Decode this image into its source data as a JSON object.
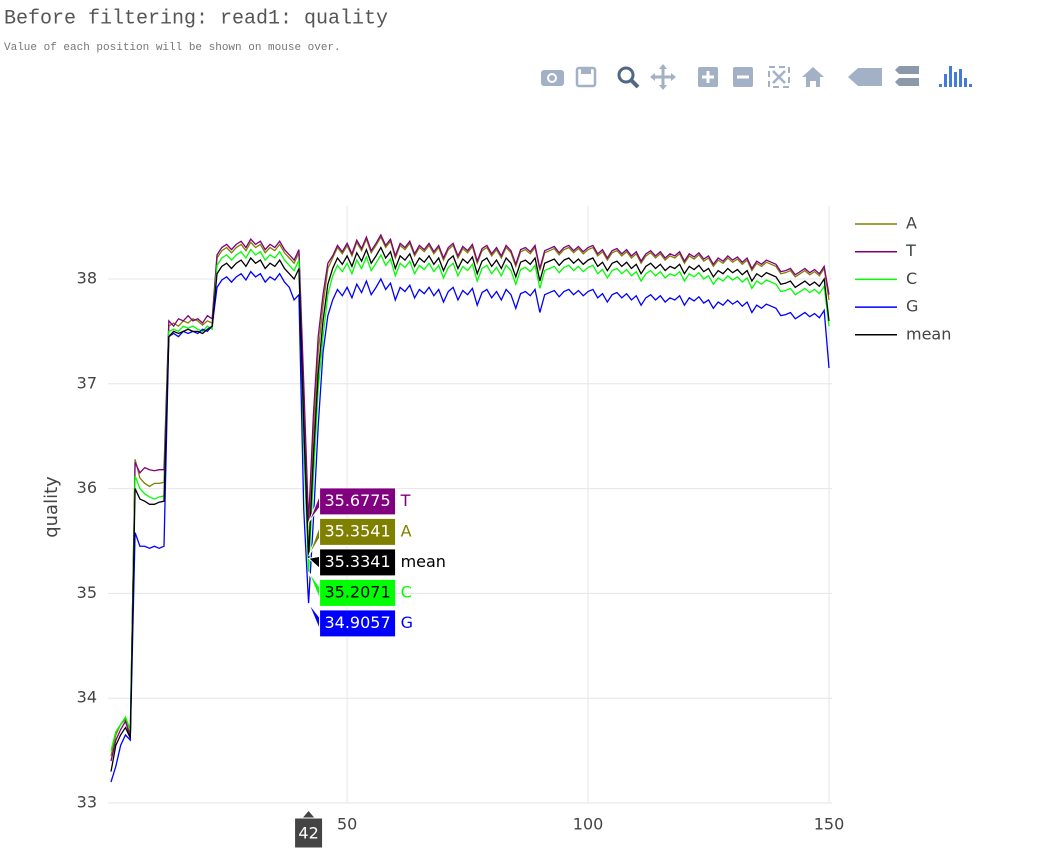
{
  "chart_data": {
    "type": "line",
    "title": "Before filtering: read1: quality",
    "subtitle": "Value of each position will be shown on mouse over.",
    "y_label": "quality",
    "xlim": [
      1,
      150
    ],
    "ylim": [
      33,
      38.7
    ],
    "xticks": [
      50,
      100,
      150
    ],
    "yticks": [
      33,
      34,
      35,
      36,
      37,
      38
    ],
    "grid": true,
    "legend": "top-right",
    "hover": {
      "x": 42
    },
    "x": [
      1,
      2,
      3,
      4,
      5,
      6,
      7,
      8,
      9,
      10,
      11,
      12,
      13,
      14,
      15,
      16,
      17,
      18,
      19,
      20,
      21,
      22,
      23,
      24,
      25,
      26,
      27,
      28,
      29,
      30,
      31,
      32,
      33,
      34,
      35,
      36,
      37,
      38,
      39,
      40,
      41,
      42,
      43,
      44,
      45,
      46,
      47,
      48,
      49,
      50,
      51,
      52,
      53,
      54,
      55,
      56,
      57,
      58,
      59,
      60,
      61,
      62,
      63,
      64,
      65,
      66,
      67,
      68,
      69,
      70,
      71,
      72,
      73,
      74,
      75,
      76,
      77,
      78,
      79,
      80,
      81,
      82,
      83,
      84,
      85,
      86,
      87,
      88,
      89,
      90,
      91,
      92,
      93,
      94,
      95,
      96,
      97,
      98,
      99,
      100,
      101,
      102,
      103,
      104,
      105,
      106,
      107,
      108,
      109,
      110,
      111,
      112,
      113,
      114,
      115,
      116,
      117,
      118,
      119,
      120,
      121,
      122,
      123,
      124,
      125,
      126,
      127,
      128,
      129,
      130,
      131,
      132,
      133,
      134,
      135,
      136,
      137,
      138,
      139,
      140,
      141,
      142,
      143,
      144,
      145,
      146,
      147,
      148,
      149,
      150
    ],
    "series": [
      {
        "name": "A",
        "color": "#808000",
        "values": [
          33.45,
          33.65,
          33.75,
          33.8,
          33.65,
          36.28,
          36.1,
          36.05,
          36.02,
          36.05,
          36.05,
          36.06,
          37.55,
          37.58,
          37.55,
          37.6,
          37.58,
          37.62,
          37.6,
          37.56,
          37.6,
          37.58,
          38.2,
          38.27,
          38.3,
          38.25,
          38.3,
          38.33,
          38.27,
          38.35,
          38.3,
          38.33,
          38.25,
          38.3,
          38.27,
          38.33,
          38.25,
          38.2,
          38.15,
          38.25,
          36.85,
          35.3541,
          36.5,
          37.3,
          37.75,
          38.1,
          38.2,
          38.3,
          38.24,
          38.32,
          38.22,
          38.35,
          38.27,
          38.38,
          38.25,
          38.32,
          38.4,
          38.3,
          38.36,
          38.2,
          38.32,
          38.28,
          38.34,
          38.22,
          38.3,
          38.26,
          38.32,
          38.24,
          38.3,
          38.18,
          38.28,
          38.32,
          38.2,
          38.29,
          38.25,
          38.31,
          38.15,
          38.27,
          38.3,
          38.22,
          38.28,
          38.2,
          38.3,
          38.25,
          38.12,
          38.26,
          38.28,
          38.24,
          38.3,
          38.08,
          38.25,
          38.27,
          38.29,
          38.23,
          38.28,
          38.3,
          38.25,
          38.29,
          38.24,
          38.28,
          38.3,
          38.22,
          38.26,
          38.18,
          38.25,
          38.27,
          38.22,
          38.26,
          38.2,
          38.24,
          38.15,
          38.22,
          38.25,
          38.2,
          38.24,
          38.18,
          38.22,
          38.2,
          38.24,
          38.15,
          38.22,
          38.19,
          38.23,
          38.17,
          38.2,
          38.12,
          38.18,
          38.15,
          38.2,
          38.16,
          38.19,
          38.14,
          38.18,
          38.08,
          38.15,
          38.12,
          38.16,
          38.14,
          38.12,
          38.05,
          38.06,
          38.08,
          38.02,
          38.05,
          38.08,
          38.04,
          38.07,
          38.03,
          38.1,
          37.8
        ]
      },
      {
        "name": "T",
        "color": "#800080",
        "values": [
          33.4,
          33.6,
          33.7,
          33.78,
          33.62,
          36.25,
          36.15,
          36.2,
          36.18,
          36.17,
          36.18,
          36.18,
          37.6,
          37.55,
          37.62,
          37.6,
          37.65,
          37.6,
          37.62,
          37.58,
          37.65,
          37.62,
          38.23,
          38.3,
          38.33,
          38.28,
          38.33,
          38.36,
          38.3,
          38.38,
          38.33,
          38.36,
          38.28,
          38.33,
          38.3,
          38.36,
          38.28,
          38.23,
          38.18,
          38.28,
          37.0,
          35.6775,
          36.7,
          37.45,
          37.85,
          38.15,
          38.22,
          38.32,
          38.26,
          38.34,
          38.24,
          38.37,
          38.29,
          38.4,
          38.27,
          38.34,
          38.42,
          38.32,
          38.38,
          38.22,
          38.34,
          38.3,
          38.36,
          38.24,
          38.32,
          38.28,
          38.34,
          38.26,
          38.32,
          38.2,
          38.3,
          38.34,
          38.22,
          38.31,
          38.27,
          38.33,
          38.17,
          38.29,
          38.32,
          38.24,
          38.3,
          38.22,
          38.32,
          38.27,
          38.14,
          38.28,
          38.3,
          38.26,
          38.32,
          38.1,
          38.27,
          38.29,
          38.31,
          38.25,
          38.3,
          38.32,
          38.27,
          38.31,
          38.26,
          38.3,
          38.32,
          38.24,
          38.28,
          38.2,
          38.27,
          38.29,
          38.24,
          38.28,
          38.22,
          38.26,
          38.17,
          38.24,
          38.27,
          38.22,
          38.26,
          38.2,
          38.24,
          38.22,
          38.26,
          38.17,
          38.24,
          38.21,
          38.25,
          38.19,
          38.22,
          38.14,
          38.2,
          38.17,
          38.22,
          38.18,
          38.21,
          38.16,
          38.2,
          38.1,
          38.17,
          38.14,
          38.18,
          38.16,
          38.14,
          38.07,
          38.08,
          38.1,
          38.04,
          38.07,
          38.1,
          38.06,
          38.09,
          38.05,
          38.12,
          37.85
        ]
      },
      {
        "name": "C",
        "color": "#00ff00",
        "values": [
          33.5,
          33.68,
          33.75,
          33.82,
          33.7,
          36.12,
          36.0,
          35.95,
          35.92,
          35.9,
          35.92,
          35.93,
          37.5,
          37.52,
          37.5,
          37.55,
          37.53,
          37.55,
          37.52,
          37.5,
          37.55,
          37.52,
          38.13,
          38.2,
          38.23,
          38.18,
          38.23,
          38.26,
          38.2,
          38.28,
          38.23,
          38.26,
          38.18,
          38.23,
          38.2,
          38.26,
          38.18,
          38.13,
          38.08,
          38.18,
          36.4,
          35.2071,
          36.1,
          36.95,
          37.45,
          37.85,
          38.03,
          38.13,
          38.07,
          38.15,
          38.05,
          38.18,
          38.1,
          38.21,
          38.08,
          38.15,
          38.23,
          38.13,
          38.19,
          38.03,
          38.15,
          38.11,
          38.17,
          38.05,
          38.13,
          38.09,
          38.15,
          38.07,
          38.13,
          38.01,
          38.11,
          38.15,
          38.03,
          38.12,
          38.08,
          38.14,
          37.98,
          38.1,
          38.13,
          38.05,
          38.11,
          38.03,
          38.13,
          38.08,
          37.95,
          38.09,
          38.11,
          38.07,
          38.13,
          37.91,
          38.08,
          38.1,
          38.12,
          38.06,
          38.11,
          38.13,
          38.08,
          38.12,
          38.07,
          38.11,
          38.13,
          38.05,
          38.09,
          38.01,
          38.08,
          38.1,
          38.05,
          38.09,
          38.03,
          38.07,
          37.98,
          38.05,
          38.08,
          38.03,
          38.07,
          38.01,
          38.05,
          38.03,
          38.07,
          37.98,
          38.05,
          38.02,
          38.06,
          38.0,
          38.03,
          37.95,
          38.01,
          37.98,
          38.03,
          37.99,
          38.02,
          37.97,
          38.01,
          37.91,
          37.98,
          37.95,
          37.99,
          37.97,
          37.95,
          37.88,
          37.89,
          37.91,
          37.85,
          37.88,
          37.91,
          37.87,
          37.9,
          37.86,
          37.93,
          37.55
        ]
      },
      {
        "name": "G",
        "color": "#0000ff",
        "values": [
          33.2,
          33.35,
          33.55,
          33.65,
          33.6,
          35.58,
          35.45,
          35.45,
          35.43,
          35.45,
          35.43,
          35.45,
          37.45,
          37.48,
          37.45,
          37.5,
          37.48,
          37.5,
          37.48,
          37.52,
          37.5,
          37.55,
          37.92,
          37.99,
          38.02,
          37.97,
          38.02,
          38.05,
          37.99,
          38.07,
          38.02,
          38.05,
          37.97,
          38.02,
          37.99,
          38.05,
          37.97,
          37.92,
          37.8,
          37.85,
          35.8,
          34.9057,
          35.7,
          36.6,
          37.3,
          37.65,
          37.8,
          37.9,
          37.84,
          37.92,
          37.82,
          37.95,
          37.87,
          37.98,
          37.85,
          37.92,
          38.0,
          37.9,
          37.96,
          37.8,
          37.92,
          37.88,
          37.94,
          37.82,
          37.9,
          37.86,
          37.92,
          37.84,
          37.9,
          37.78,
          37.88,
          37.92,
          37.8,
          37.89,
          37.85,
          37.91,
          37.75,
          37.87,
          37.9,
          37.82,
          37.88,
          37.8,
          37.9,
          37.85,
          37.72,
          37.86,
          37.88,
          37.84,
          37.9,
          37.68,
          37.85,
          37.87,
          37.89,
          37.83,
          37.88,
          37.9,
          37.85,
          37.89,
          37.84,
          37.88,
          37.9,
          37.82,
          37.86,
          37.78,
          37.85,
          37.87,
          37.82,
          37.86,
          37.8,
          37.84,
          37.75,
          37.82,
          37.85,
          37.8,
          37.84,
          37.78,
          37.82,
          37.8,
          37.84,
          37.75,
          37.82,
          37.79,
          37.83,
          37.77,
          37.8,
          37.72,
          37.78,
          37.75,
          37.8,
          37.76,
          37.79,
          37.74,
          37.78,
          37.68,
          37.75,
          37.72,
          37.76,
          37.74,
          37.72,
          37.65,
          37.66,
          37.68,
          37.62,
          37.65,
          37.68,
          37.64,
          37.67,
          37.63,
          37.7,
          37.15
        ]
      },
      {
        "name": "mean",
        "color": "#000000",
        "values": [
          33.3,
          33.55,
          33.65,
          33.72,
          33.62,
          36.0,
          35.9,
          35.88,
          35.85,
          35.85,
          35.87,
          35.88,
          37.45,
          37.5,
          37.48,
          37.5,
          37.52,
          37.5,
          37.5,
          37.48,
          37.52,
          37.55,
          38.05,
          38.12,
          38.15,
          38.1,
          38.15,
          38.18,
          38.12,
          38.2,
          38.15,
          38.18,
          38.1,
          38.15,
          38.12,
          38.18,
          38.1,
          38.05,
          38.0,
          38.1,
          36.6,
          35.3341,
          36.3,
          37.1,
          37.6,
          37.95,
          38.1,
          38.2,
          38.14,
          38.22,
          38.12,
          38.25,
          38.17,
          38.28,
          38.15,
          38.22,
          38.3,
          38.2,
          38.26,
          38.1,
          38.22,
          38.18,
          38.24,
          38.12,
          38.2,
          38.16,
          38.22,
          38.14,
          38.2,
          38.08,
          38.18,
          38.22,
          38.1,
          38.19,
          38.15,
          38.21,
          38.05,
          38.17,
          38.2,
          38.12,
          38.18,
          38.1,
          38.2,
          38.15,
          38.02,
          38.16,
          38.18,
          38.14,
          38.2,
          37.98,
          38.15,
          38.17,
          38.19,
          38.13,
          38.18,
          38.2,
          38.15,
          38.19,
          38.14,
          38.18,
          38.2,
          38.12,
          38.16,
          38.08,
          38.15,
          38.17,
          38.12,
          38.16,
          38.1,
          38.14,
          38.05,
          38.12,
          38.15,
          38.1,
          38.14,
          38.08,
          38.12,
          38.1,
          38.14,
          38.05,
          38.12,
          38.09,
          38.13,
          38.07,
          38.1,
          38.02,
          38.08,
          38.05,
          38.1,
          38.06,
          38.09,
          38.04,
          38.08,
          37.98,
          38.05,
          38.02,
          38.06,
          38.04,
          38.02,
          37.95,
          37.96,
          37.98,
          37.92,
          37.95,
          37.98,
          37.94,
          37.97,
          37.93,
          38.0,
          37.6
        ]
      }
    ]
  }
}
